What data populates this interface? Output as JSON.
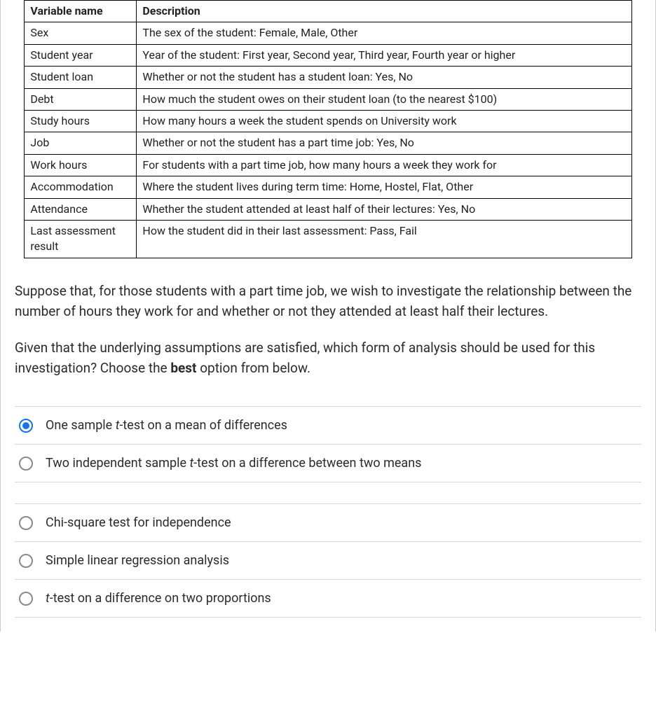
{
  "table": {
    "headers": {
      "name": "Variable name",
      "description": "Description"
    },
    "rows": [
      {
        "name": "Sex",
        "description": "The sex of the student: Female, Male, Other"
      },
      {
        "name": "Student year",
        "description": "Year of the student: First year, Second year, Third year, Fourth year or higher"
      },
      {
        "name": "Student loan",
        "description": "Whether or not the student has a student loan: Yes, No"
      },
      {
        "name": "Debt",
        "description": "How much the student owes on their student loan (to the nearest $100)"
      },
      {
        "name": "Study hours",
        "description": "How many hours a week  the student spends on University work"
      },
      {
        "name": "Job",
        "description": "Whether or not the student has a part time job: Yes, No"
      },
      {
        "name": "Work hours",
        "description": "For students with a part time job, how many hours a week they work for"
      },
      {
        "name": "Accommodation",
        "description": "Where the student lives during term time: Home, Hostel, Flat, Other"
      },
      {
        "name": "Attendance",
        "description": "Whether the student attended at least half of their lectures: Yes, No"
      },
      {
        "name": "Last assessment result",
        "description": "How the student did in their last assessment: Pass, Fail"
      }
    ]
  },
  "question": {
    "para1": "Suppose that, for those students with a part time job,  we wish to investigate the relationship between the number of hours they work for and whether or not they attended at least half their lectures.",
    "para2_a": "Given that the underlying assumptions are satisfied, which form of analysis should be used for this investigation? Choose the ",
    "para2_bold": "best",
    "para2_b": " option from below."
  },
  "options": {
    "groups": [
      [
        {
          "label_pre": "One sample ",
          "label_t": "t",
          "label_post": "-test on a mean of differences",
          "selected": true
        },
        {
          "label_pre": "Two independent sample ",
          "label_t": "t",
          "label_post": "-test on a difference between two means",
          "selected": false
        }
      ],
      [
        {
          "label_pre": "Chi-square test for independence",
          "label_t": "",
          "label_post": "",
          "selected": false
        },
        {
          "label_pre": "Simple linear regression analysis",
          "label_t": "",
          "label_post": "",
          "selected": false
        },
        {
          "label_pre": "",
          "label_t": "t",
          "label_post": "-test on a difference on two proportions",
          "selected": false
        }
      ]
    ]
  },
  "styles": {
    "text_color": "#2b2b2b",
    "border_color": "#000000",
    "divider_color": "#d7d7d7",
    "radio_border": "#8a8a8a",
    "radio_selected": "#1a73e8",
    "background": "#ffffff",
    "table_font_size": 16,
    "body_font_size": 19,
    "option_font_size": 18
  }
}
